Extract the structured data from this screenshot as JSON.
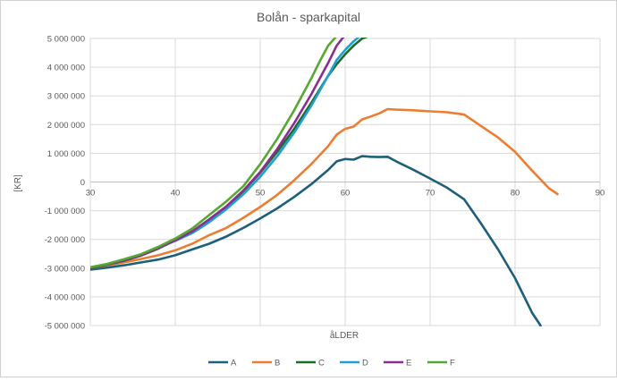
{
  "chart_data": {
    "type": "line",
    "title": "Bolån  - sparkapital",
    "xlabel": "åLDER",
    "ylabel": "[KR]",
    "xlim": [
      30,
      90
    ],
    "ylim": [
      -5000000,
      5000000
    ],
    "x_ticks": [
      30,
      40,
      50,
      60,
      70,
      80,
      90
    ],
    "x_tick_labels": [
      "30",
      "40",
      "50",
      "60",
      "70",
      "80",
      "90"
    ],
    "y_ticks": [
      5000000,
      4000000,
      3000000,
      2000000,
      1000000,
      0,
      -1000000,
      -2000000,
      -3000000,
      -4000000,
      -5000000
    ],
    "y_tick_labels": [
      "5 000 000",
      "4 000 000",
      "3 000 000",
      "2 000 000",
      "1 000 000",
      "0",
      "-1 000 000",
      "-2 000 000",
      "-3 000 000",
      "-4 000 000",
      "-5 000 000"
    ],
    "grid": true,
    "legend_position": "bottom",
    "series": [
      {
        "name": "A",
        "color": "#1e5f7a",
        "x": [
          30,
          32,
          34,
          36,
          38,
          40,
          42,
          44,
          46,
          48,
          50,
          52,
          54,
          56,
          58,
          59,
          60,
          61,
          62,
          63,
          64,
          65,
          66,
          68,
          70,
          72,
          74,
          76,
          78,
          80,
          82,
          83
        ],
        "y": [
          -3050000,
          -2980000,
          -2900000,
          -2800000,
          -2700000,
          -2550000,
          -2350000,
          -2150000,
          -1900000,
          -1600000,
          -1270000,
          -920000,
          -520000,
          -80000,
          420000,
          720000,
          800000,
          780000,
          900000,
          880000,
          870000,
          880000,
          720000,
          430000,
          120000,
          -200000,
          -600000,
          -1450000,
          -2350000,
          -3350000,
          -4550000,
          -5000000
        ]
      },
      {
        "name": "B",
        "color": "#ed7d31",
        "x": [
          30,
          32,
          34,
          36,
          38,
          40,
          42,
          44,
          46,
          48,
          50,
          52,
          54,
          56,
          58,
          59,
          60,
          61,
          62,
          63,
          64,
          65,
          66,
          68,
          70,
          72,
          74,
          76,
          78,
          80,
          82,
          84,
          85
        ],
        "y": [
          -3000000,
          -2900000,
          -2800000,
          -2680000,
          -2550000,
          -2380000,
          -2150000,
          -1850000,
          -1600000,
          -1250000,
          -870000,
          -450000,
          60000,
          620000,
          1250000,
          1650000,
          1850000,
          1930000,
          2180000,
          2280000,
          2390000,
          2540000,
          2520000,
          2500000,
          2460000,
          2430000,
          2350000,
          1950000,
          1550000,
          1050000,
          400000,
          -220000,
          -420000
        ]
      },
      {
        "name": "C",
        "color": "#1d6b28",
        "x": [
          30,
          32,
          34,
          36,
          38,
          40,
          42,
          44,
          46,
          48,
          50,
          52,
          54,
          56,
          58,
          59,
          60,
          61,
          62,
          62.5
        ],
        "y": [
          -3000000,
          -2880000,
          -2740000,
          -2560000,
          -2320000,
          -2030000,
          -1720000,
          -1340000,
          -880000,
          -320000,
          320000,
          1050000,
          1850000,
          2750000,
          3700000,
          4100000,
          4450000,
          4750000,
          5000000,
          5050000
        ]
      },
      {
        "name": "D",
        "color": "#1ea0d6",
        "x": [
          30,
          32,
          34,
          36,
          38,
          40,
          42,
          44,
          46,
          48,
          50,
          52,
          54,
          56,
          58,
          59,
          60,
          61,
          61.6
        ],
        "y": [
          -2980000,
          -2860000,
          -2720000,
          -2550000,
          -2300000,
          -2050000,
          -1780000,
          -1400000,
          -950000,
          -430000,
          180000,
          900000,
          1720000,
          2650000,
          3700000,
          4250000,
          4600000,
          4900000,
          5050000
        ]
      },
      {
        "name": "E",
        "color": "#8b2e8e",
        "x": [
          30,
          32,
          34,
          36,
          38,
          40,
          42,
          44,
          46,
          48,
          50,
          52,
          54,
          56,
          58,
          59,
          59.8
        ],
        "y": [
          -2980000,
          -2860000,
          -2720000,
          -2550000,
          -2300000,
          -2030000,
          -1720000,
          -1300000,
          -850000,
          -300000,
          350000,
          1150000,
          2050000,
          3050000,
          4150000,
          4750000,
          5050000
        ]
      },
      {
        "name": "F",
        "color": "#56a832",
        "x": [
          30,
          32,
          34,
          36,
          38,
          40,
          42,
          44,
          46,
          48,
          50,
          52,
          54,
          56,
          57,
          58,
          58.9
        ],
        "y": [
          -2970000,
          -2850000,
          -2690000,
          -2510000,
          -2260000,
          -1970000,
          -1620000,
          -1150000,
          -680000,
          -150000,
          620000,
          1500000,
          2500000,
          3600000,
          4200000,
          4750000,
          5050000
        ]
      }
    ]
  }
}
